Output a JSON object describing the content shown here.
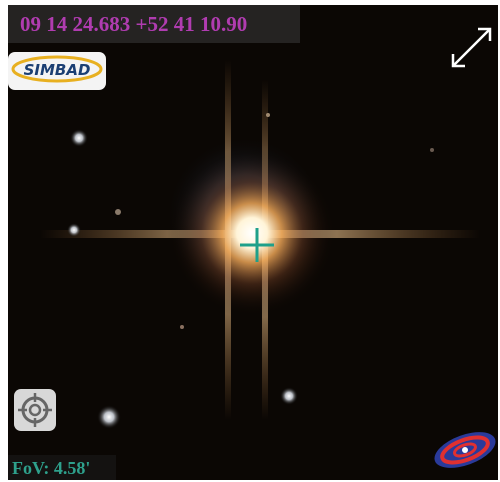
{
  "coordinates": "09 14 24.683 +52 41 10.90",
  "fov": "FoV: 4.58'",
  "simbad_logo": "SIMBAD"
}
